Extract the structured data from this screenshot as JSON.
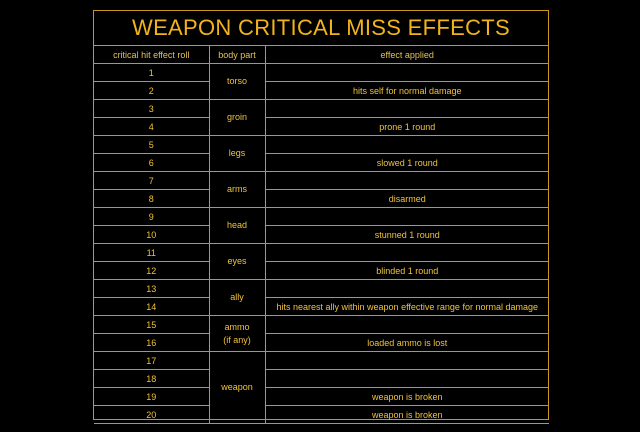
{
  "title": "WEAPON CRITICAL MISS EFFECTS",
  "headers": {
    "roll": "critical hit effect roll",
    "part": "body part",
    "effect": "effect applied"
  },
  "rows": [
    {
      "roll": "1",
      "effect": ""
    },
    {
      "roll": "2",
      "effect": "hits self for normal damage"
    },
    {
      "roll": "3",
      "effect": ""
    },
    {
      "roll": "4",
      "effect": "prone 1 round"
    },
    {
      "roll": "5",
      "effect": ""
    },
    {
      "roll": "6",
      "effect": "slowed 1 round"
    },
    {
      "roll": "7",
      "effect": ""
    },
    {
      "roll": "8",
      "effect": "disarmed"
    },
    {
      "roll": "9",
      "effect": ""
    },
    {
      "roll": "10",
      "effect": "stunned 1 round"
    },
    {
      "roll": "11",
      "effect": ""
    },
    {
      "roll": "12",
      "effect": "blinded 1 round"
    },
    {
      "roll": "13",
      "effect": ""
    },
    {
      "roll": "14",
      "effect": "hits nearest ally within weapon effective range for normal damage"
    },
    {
      "roll": "15",
      "effect": ""
    },
    {
      "roll": "16",
      "effect": "loaded ammo is lost"
    },
    {
      "roll": "17",
      "effect": ""
    },
    {
      "roll": "18",
      "effect": ""
    },
    {
      "roll": "19",
      "effect": "weapon is broken"
    },
    {
      "roll": "20",
      "effect": "weapon is broken"
    }
  ],
  "body_parts": [
    {
      "label": "torso",
      "rows": 2
    },
    {
      "label": "groin",
      "rows": 2
    },
    {
      "label": "legs",
      "rows": 2
    },
    {
      "label": "arms",
      "rows": 2
    },
    {
      "label": "head",
      "rows": 2
    },
    {
      "label": "eyes",
      "rows": 2
    },
    {
      "label": "ally",
      "rows": 2
    },
    {
      "label": "ammo",
      "label2": "(if any)",
      "rows": 2
    },
    {
      "label": "weapon",
      "rows": 4
    }
  ],
  "colors": {
    "background": "#000000",
    "text": "#f2b31c",
    "border": "#c9961a"
  }
}
